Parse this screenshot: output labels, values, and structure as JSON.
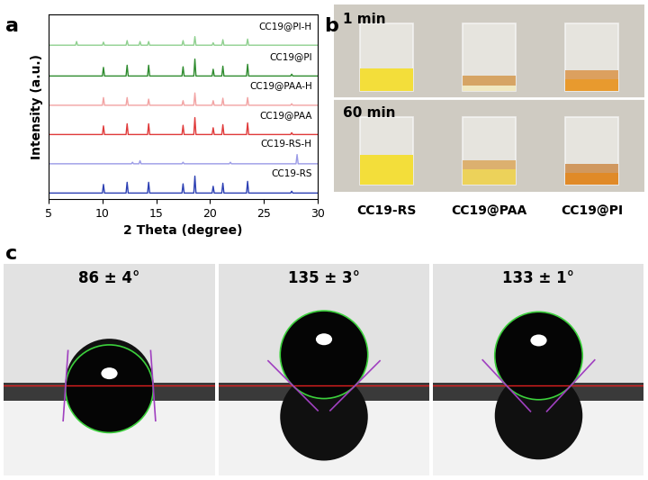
{
  "chart_data": {
    "type": "line",
    "panel": "a",
    "x_label": "2 Theta (degree)",
    "y_label": "Intensity (a.u.)",
    "xlim": [
      5,
      30
    ],
    "xticks": [
      5,
      10,
      15,
      20,
      25,
      30
    ],
    "ylim": [
      0,
      6.0
    ],
    "yticks": [],
    "tick_labels": "x",
    "series": [
      {
        "name": "CC19@PI-H",
        "color": "#8fd08f",
        "x": [
          5,
          7.5,
          7.6,
          7.7,
          10.0,
          10.1,
          10.2,
          12.2,
          12.3,
          12.4,
          13.4,
          13.5,
          13.6,
          14.2,
          14.3,
          14.4,
          17.4,
          17.5,
          17.6,
          18.5,
          18.6,
          18.7,
          20.2,
          20.3,
          20.4,
          21.1,
          21.2,
          21.3,
          23.4,
          23.5,
          23.6,
          30
        ],
        "values": [
          5.0,
          5.0,
          5.12,
          5.0,
          5.0,
          5.1,
          5.0,
          5.0,
          5.15,
          5.0,
          5.0,
          5.12,
          5.0,
          5.0,
          5.12,
          5.0,
          5.0,
          5.15,
          5.0,
          5.0,
          5.28,
          5.0,
          5.0,
          5.08,
          5.0,
          5.0,
          5.18,
          5.0,
          5.0,
          5.2,
          5.0,
          5.0
        ]
      },
      {
        "name": "CC19@PI",
        "color": "#2e8b2e",
        "x": [
          5,
          10.0,
          10.1,
          10.2,
          12.2,
          12.3,
          12.4,
          14.2,
          14.3,
          14.4,
          17.4,
          17.5,
          17.6,
          18.5,
          18.6,
          18.7,
          20.2,
          20.3,
          20.4,
          21.1,
          21.2,
          21.3,
          23.4,
          23.5,
          23.6,
          27.5,
          27.6,
          27.7,
          30
        ],
        "values": [
          4.0,
          4.0,
          4.28,
          4.0,
          4.0,
          4.35,
          4.0,
          4.0,
          4.35,
          4.0,
          4.0,
          4.3,
          4.0,
          4.0,
          4.55,
          4.0,
          4.0,
          4.22,
          4.0,
          4.0,
          4.32,
          4.0,
          4.0,
          4.38,
          4.0,
          4.0,
          4.06,
          4.0,
          4.0
        ]
      },
      {
        "name": "CC19@PAA-H",
        "color": "#f2a3a3",
        "x": [
          5,
          10.0,
          10.1,
          10.2,
          12.2,
          12.3,
          12.4,
          14.2,
          14.3,
          14.4,
          17.4,
          17.5,
          17.6,
          18.5,
          18.6,
          18.7,
          20.2,
          20.3,
          20.4,
          21.1,
          21.2,
          21.3,
          23.4,
          23.5,
          23.6,
          27.5,
          27.6,
          27.7,
          30
        ],
        "values": [
          3.05,
          3.05,
          3.3,
          3.05,
          3.05,
          3.3,
          3.05,
          3.05,
          3.25,
          3.05,
          3.05,
          3.2,
          3.05,
          3.05,
          3.45,
          3.05,
          3.05,
          3.2,
          3.05,
          3.05,
          3.28,
          3.05,
          3.05,
          3.3,
          3.05,
          3.05,
          3.1,
          3.05,
          3.05
        ]
      },
      {
        "name": "CC19@PAA",
        "color": "#e03a3a",
        "x": [
          5,
          10.0,
          10.1,
          10.2,
          12.2,
          12.3,
          12.4,
          14.2,
          14.3,
          14.4,
          17.4,
          17.5,
          17.6,
          18.5,
          18.6,
          18.7,
          20.2,
          20.3,
          20.4,
          21.1,
          21.2,
          21.3,
          23.4,
          23.5,
          23.6,
          27.5,
          27.6,
          27.7,
          30
        ],
        "values": [
          2.1,
          2.1,
          2.38,
          2.1,
          2.1,
          2.45,
          2.1,
          2.1,
          2.45,
          2.1,
          2.1,
          2.4,
          2.1,
          2.1,
          2.65,
          2.1,
          2.1,
          2.32,
          2.1,
          2.1,
          2.42,
          2.1,
          2.1,
          2.48,
          2.1,
          2.1,
          2.16,
          2.1,
          2.1
        ]
      },
      {
        "name": "CC19-RS-H",
        "color": "#9a9ae6",
        "x": [
          5,
          12.7,
          12.8,
          12.9,
          13.4,
          13.5,
          13.6,
          17.4,
          17.5,
          17.6,
          21.8,
          21.9,
          22.0,
          28.0,
          28.1,
          28.2,
          30
        ],
        "values": [
          1.15,
          1.15,
          1.2,
          1.15,
          1.15,
          1.25,
          1.15,
          1.15,
          1.2,
          1.15,
          1.15,
          1.2,
          1.15,
          1.15,
          1.45,
          1.15,
          1.15
        ]
      },
      {
        "name": "CC19-RS",
        "color": "#2b3fb3",
        "x": [
          5,
          10.0,
          10.1,
          10.2,
          12.2,
          12.3,
          12.4,
          14.2,
          14.3,
          14.4,
          17.4,
          17.5,
          17.6,
          18.5,
          18.6,
          18.7,
          20.2,
          20.3,
          20.4,
          21.1,
          21.2,
          21.3,
          23.4,
          23.5,
          23.6,
          27.5,
          27.6,
          27.7,
          30
        ],
        "values": [
          0.2,
          0.2,
          0.48,
          0.2,
          0.2,
          0.55,
          0.2,
          0.2,
          0.55,
          0.2,
          0.2,
          0.5,
          0.2,
          0.2,
          0.75,
          0.2,
          0.2,
          0.42,
          0.2,
          0.2,
          0.52,
          0.2,
          0.2,
          0.58,
          0.2,
          0.2,
          0.26,
          0.2,
          0.2
        ]
      }
    ]
  },
  "photos": {
    "panel": "b",
    "times": [
      "1 min",
      "60 min"
    ],
    "samples": [
      "CC19-RS",
      "CC19@PAA",
      "CC19@PI"
    ]
  },
  "contact_angles": {
    "panel": "c",
    "angles": [
      86,
      135,
      133
    ],
    "labels": [
      "86 ± 4°",
      "135 ± 3°",
      "133 ± 1°"
    ]
  }
}
